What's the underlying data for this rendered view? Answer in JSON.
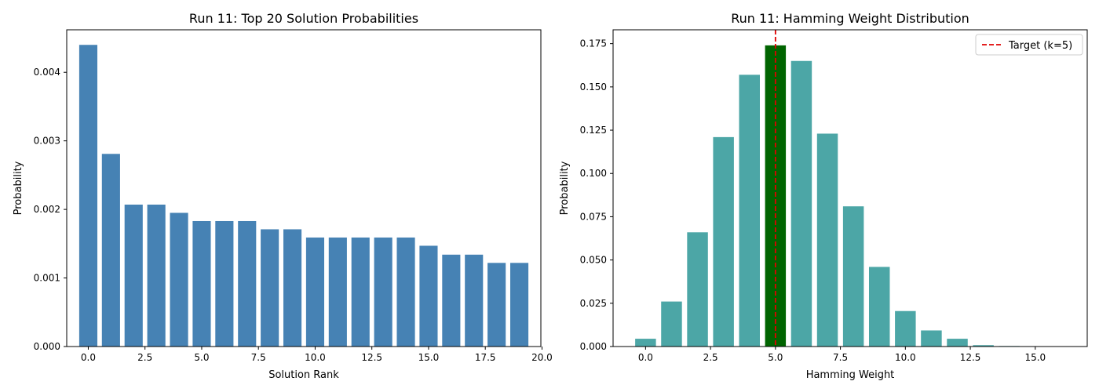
{
  "chart_data": [
    {
      "type": "bar",
      "title": "Run 11: Top 20 Solution Probabilities",
      "xlabel": "Solution Rank",
      "ylabel": "Probability",
      "x": [
        0,
        1,
        2,
        3,
        4,
        5,
        6,
        7,
        8,
        9,
        10,
        11,
        12,
        13,
        14,
        15,
        16,
        17,
        18,
        19
      ],
      "values": [
        0.0044,
        0.00281,
        0.00207,
        0.00207,
        0.00195,
        0.00183,
        0.00183,
        0.00183,
        0.00171,
        0.00171,
        0.00159,
        0.00159,
        0.00159,
        0.00159,
        0.00159,
        0.00147,
        0.00134,
        0.00134,
        0.00122,
        0.00122
      ],
      "xlim": [
        -0.95,
        19.95
      ],
      "ylim": [
        0,
        0.00462
      ],
      "xticks": [
        0,
        2.5,
        5,
        7.5,
        10,
        12.5,
        15,
        17.5,
        20
      ],
      "xtick_labels": [
        "0.0",
        "2.5",
        "5.0",
        "7.5",
        "10.0",
        "12.5",
        "15.0",
        "17.5",
        "20.0"
      ],
      "yticks": [
        0,
        0.001,
        0.002,
        0.003,
        0.004
      ],
      "ytick_labels": [
        "0.000",
        "0.001",
        "0.002",
        "0.003",
        "0.004"
      ],
      "bar_color": "#4682b4",
      "grid": false
    },
    {
      "type": "bar",
      "title": "Run 11: Hamming Weight Distribution",
      "xlabel": "Hamming Weight",
      "ylabel": "Probability",
      "x": [
        0,
        1,
        2,
        3,
        4,
        5,
        6,
        7,
        8,
        9,
        10,
        11,
        12,
        13,
        14,
        15,
        16
      ],
      "values": [
        0.0045,
        0.026,
        0.066,
        0.121,
        0.157,
        0.174,
        0.165,
        0.123,
        0.081,
        0.046,
        0.0205,
        0.0093,
        0.0045,
        0.0008,
        0.0003,
        0.0001,
        0.0002
      ],
      "xlim": [
        -1.25,
        17.0
      ],
      "ylim": [
        0,
        0.183
      ],
      "xticks": [
        0,
        2.5,
        5,
        7.5,
        10,
        12.5,
        15
      ],
      "xtick_labels": [
        "0.0",
        "2.5",
        "5.0",
        "7.5",
        "10.0",
        "12.5",
        "15.0"
      ],
      "yticks": [
        0,
        0.025,
        0.05,
        0.075,
        0.1,
        0.125,
        0.15,
        0.175
      ],
      "ytick_labels": [
        "0.000",
        "0.025",
        "0.050",
        "0.075",
        "0.100",
        "0.125",
        "0.150",
        "0.175"
      ],
      "bar_color": "#4ca6a6",
      "highlight_index": 5,
      "highlight_color": "#006400",
      "target_line": {
        "x": 5,
        "color": "#e00000",
        "style": "dashed",
        "label": "Target (k=5)"
      },
      "legend_position": "top-right",
      "grid": false
    }
  ]
}
